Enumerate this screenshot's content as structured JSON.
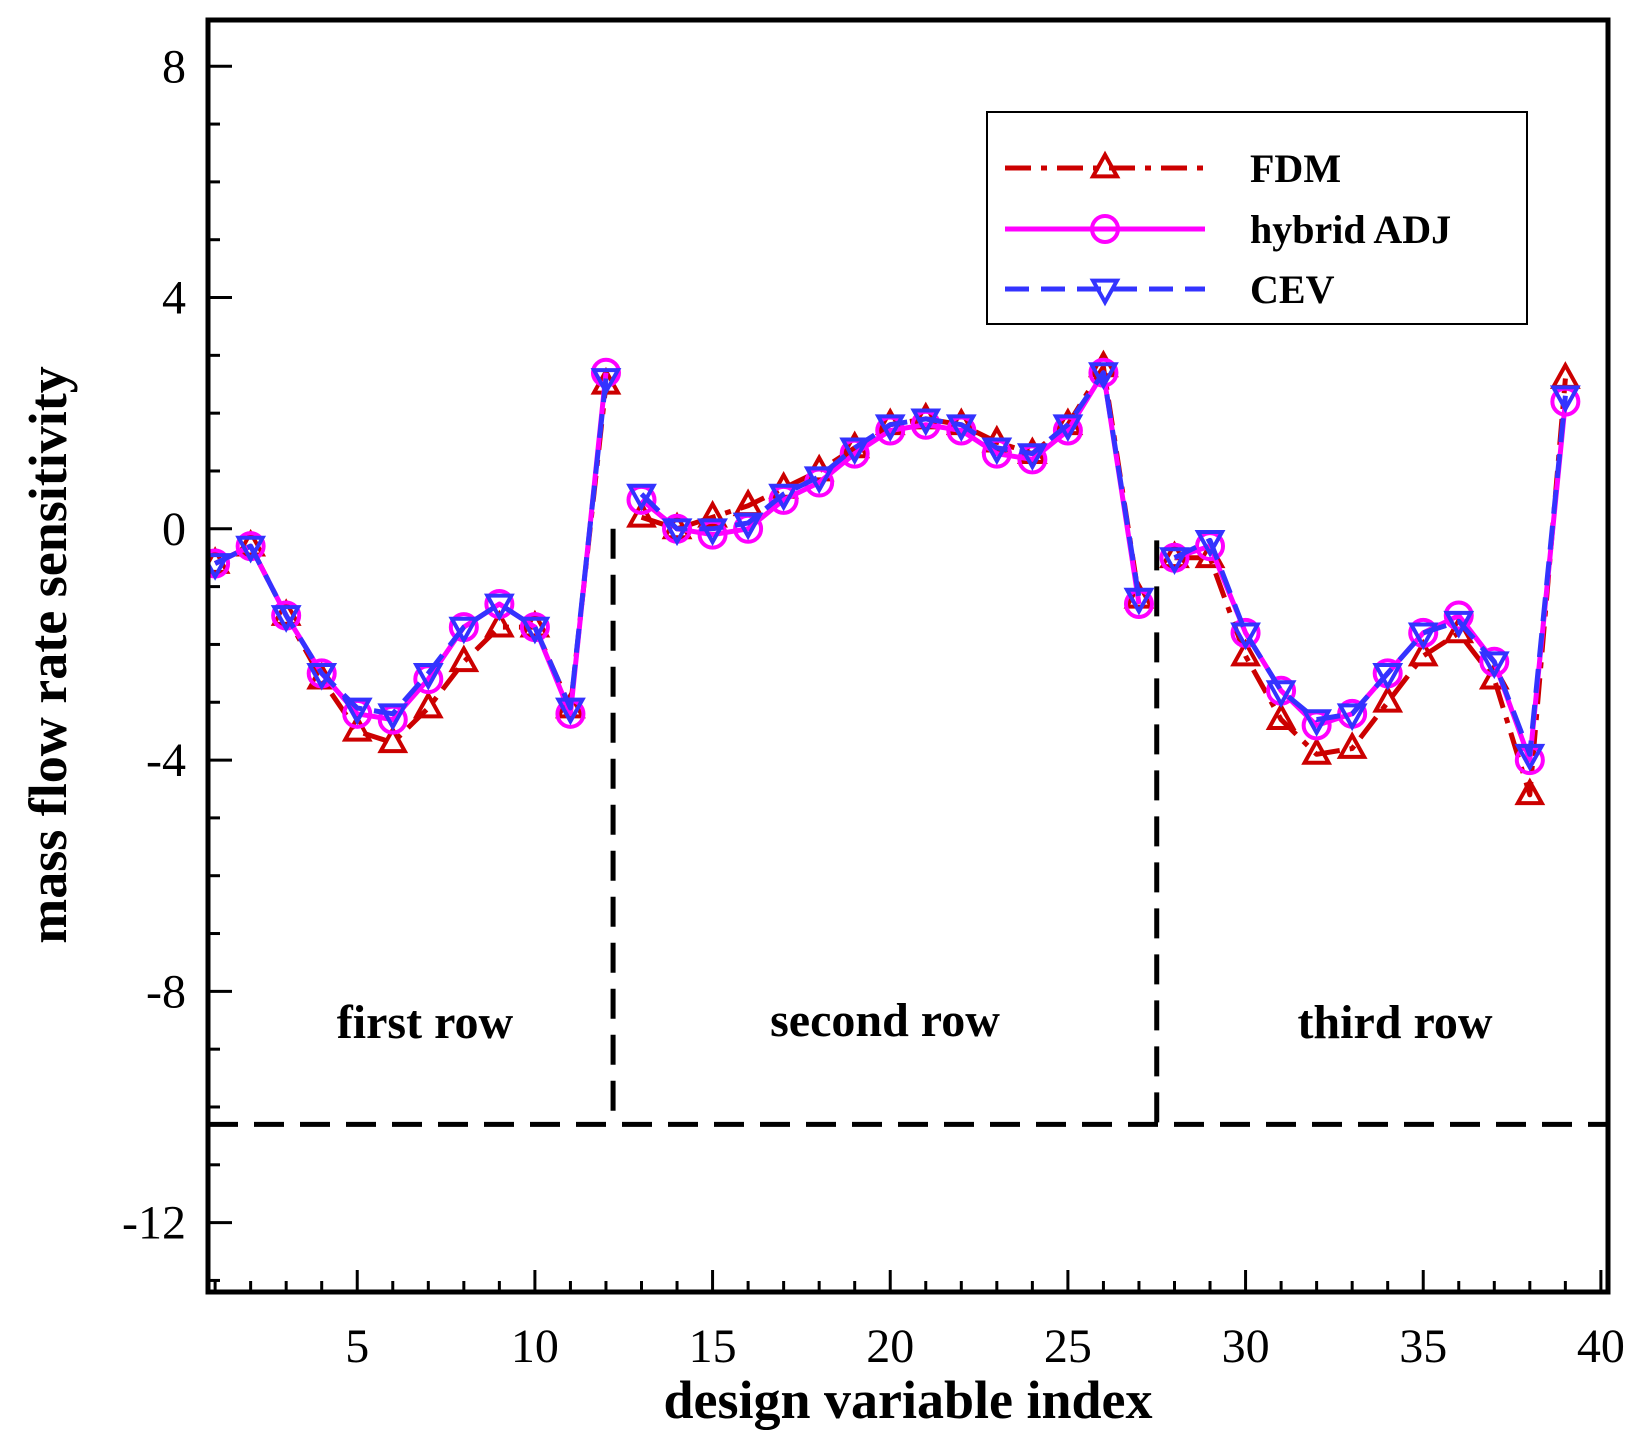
{
  "chart_data": {
    "type": "line",
    "xlabel": "design variable index",
    "ylabel": "mass flow rate sensitivity",
    "xlim": [
      0.8,
      40.2
    ],
    "ylim": [
      -13.2,
      8.8
    ],
    "xticks": [
      5,
      10,
      15,
      20,
      25,
      30,
      35,
      40
    ],
    "yticks": [
      8,
      4,
      0,
      -4,
      -8,
      -12
    ],
    "ytick_labels": [
      "8",
      "4",
      "0",
      "-4",
      "-8",
      "-12"
    ],
    "x": [
      1,
      2,
      3,
      4,
      5,
      6,
      7,
      8,
      9,
      10,
      11,
      12,
      13,
      14,
      15,
      16,
      17,
      18,
      19,
      20,
      21,
      22,
      23,
      24,
      25,
      26,
      27,
      28,
      29,
      30,
      31,
      32,
      33,
      34,
      35,
      36,
      37,
      38,
      39
    ],
    "series": [
      {
        "name": "FDM",
        "color": "#cc0000",
        "line": "dash-dot",
        "marker": "triangle-up",
        "values": [
          -0.6,
          -0.3,
          -1.5,
          -2.6,
          -3.5,
          -3.7,
          -3.1,
          -2.3,
          -1.7,
          -1.7,
          -3.1,
          2.5,
          0.2,
          0.0,
          0.2,
          0.4,
          0.7,
          1.0,
          1.4,
          1.8,
          1.9,
          1.8,
          1.5,
          1.3,
          1.8,
          2.8,
          -1.2,
          -0.5,
          -0.5,
          -2.2,
          -3.3,
          -3.9,
          -3.8,
          -3.0,
          -2.2,
          -1.8,
          -2.6,
          -4.6,
          2.6
        ]
      },
      {
        "name": "hybrid ADJ",
        "color": "#ff00ff",
        "line": "solid",
        "marker": "circle",
        "values": [
          -0.6,
          -0.3,
          -1.5,
          -2.5,
          -3.2,
          -3.3,
          -2.6,
          -1.7,
          -1.3,
          -1.7,
          -3.2,
          2.7,
          0.5,
          0.0,
          -0.1,
          0.0,
          0.5,
          0.8,
          1.3,
          1.7,
          1.8,
          1.7,
          1.3,
          1.2,
          1.7,
          2.7,
          -1.3,
          -0.5,
          -0.3,
          -1.8,
          -2.8,
          -3.4,
          -3.2,
          -2.5,
          -1.8,
          -1.5,
          -2.3,
          -4.0,
          2.2
        ]
      },
      {
        "name": "CEV",
        "color": "#3333ff",
        "line": "dashed",
        "marker": "triangle-down",
        "values": [
          -0.6,
          -0.3,
          -1.5,
          -2.5,
          -3.1,
          -3.2,
          -2.5,
          -1.7,
          -1.3,
          -1.7,
          -3.1,
          2.6,
          0.6,
          0.0,
          0.0,
          0.1,
          0.6,
          0.9,
          1.4,
          1.8,
          1.9,
          1.8,
          1.4,
          1.3,
          1.8,
          2.7,
          -1.2,
          -0.5,
          -0.2,
          -1.8,
          -2.8,
          -3.3,
          -3.2,
          -2.5,
          -1.8,
          -1.6,
          -2.3,
          -3.9,
          2.3
        ]
      }
    ],
    "dividers": {
      "vertical_x": [
        12.2,
        27.5
      ],
      "vertical_top_y": [
        0.0,
        -0.2
      ],
      "horizontal_y": -10.3,
      "color": "#000000",
      "line": "dashed"
    },
    "annotations": [
      "first row",
      "second row",
      "third row"
    ],
    "legend_position": "top-right",
    "grid": false
  }
}
